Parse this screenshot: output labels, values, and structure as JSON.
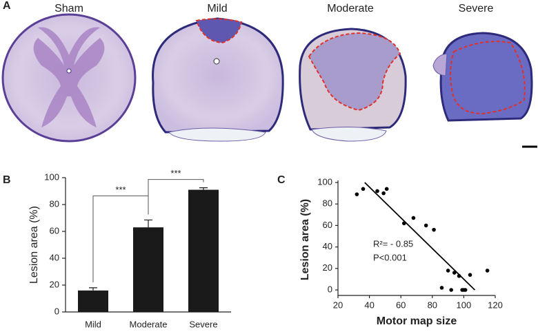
{
  "panel_a": {
    "label": "A",
    "sections": [
      "Sham",
      "Mild",
      "Moderate",
      "Severe"
    ]
  },
  "chart_data": [
    {
      "panel": "B",
      "type": "bar",
      "ylabel": "Lesion area (%)",
      "categories": [
        "Mild",
        "Moderate",
        "Severe"
      ],
      "values": [
        16,
        63,
        91
      ],
      "errors": [
        2,
        5.5,
        1.5
      ],
      "color": "#1a1a1a",
      "ylim": [
        0,
        100
      ],
      "yticks": [
        0,
        20,
        40,
        60,
        80,
        100
      ],
      "annotations": [
        "***",
        "***"
      ]
    },
    {
      "panel": "C",
      "type": "scatter",
      "xlabel": "Motor map size",
      "ylabel": "Lesion area (%)",
      "x": [
        32,
        36,
        45,
        49,
        51,
        62,
        68,
        76,
        81,
        86,
        90,
        92,
        94,
        97,
        99,
        100,
        101,
        104,
        115
      ],
      "y": [
        89,
        94,
        92,
        90,
        94,
        62,
        67,
        60,
        56,
        2,
        18,
        0,
        16,
        13,
        0,
        0,
        0,
        14,
        18
      ],
      "color": "#000000",
      "trendline": {
        "x": [
          37,
          107
        ],
        "y": [
          100,
          0
        ]
      },
      "xlim": [
        20,
        120
      ],
      "xticks": [
        20,
        40,
        60,
        80,
        100,
        120
      ],
      "ylim": [
        0,
        100
      ],
      "yticks": [
        0,
        20,
        40,
        60,
        80,
        100
      ],
      "annotations": [
        "R²= - 0.85",
        "P<0.001"
      ]
    }
  ]
}
